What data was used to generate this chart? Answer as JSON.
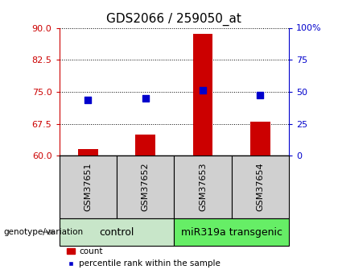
{
  "title": "GDS2066 / 259050_at",
  "samples": [
    "GSM37651",
    "GSM37652",
    "GSM37653",
    "GSM37654"
  ],
  "red_bars": [
    61.5,
    65.0,
    88.5,
    68.0
  ],
  "blue_dots": [
    73.0,
    73.5,
    75.3,
    74.2
  ],
  "ylim_left": [
    60,
    90
  ],
  "ylim_right": [
    0,
    100
  ],
  "yticks_left": [
    60,
    67.5,
    75,
    82.5,
    90
  ],
  "yticks_right": [
    0,
    25,
    50,
    75,
    100
  ],
  "ytick_labels_right": [
    "0",
    "25",
    "50",
    "75",
    "100%"
  ],
  "groups": [
    {
      "label": "control",
      "samples": [
        0,
        1
      ],
      "color": "#c8e6c9"
    },
    {
      "label": "miR319a transgenic",
      "samples": [
        2,
        3
      ],
      "color": "#66ee66"
    }
  ],
  "bar_width": 0.35,
  "bar_color": "#cc0000",
  "dot_color": "#0000cc",
  "dot_size": 30,
  "grid_style": "dotted",
  "grid_color": "#000000",
  "left_axis_color": "#cc0000",
  "right_axis_color": "#0000cc",
  "title_fontsize": 11,
  "tick_fontsize": 8,
  "sample_label_fontsize": 8,
  "group_label_fontsize": 9,
  "group_header_label": "genotype/variation",
  "legend_items": [
    "count",
    "percentile rank within the sample"
  ],
  "sample_box_color": "#d0d0d0"
}
